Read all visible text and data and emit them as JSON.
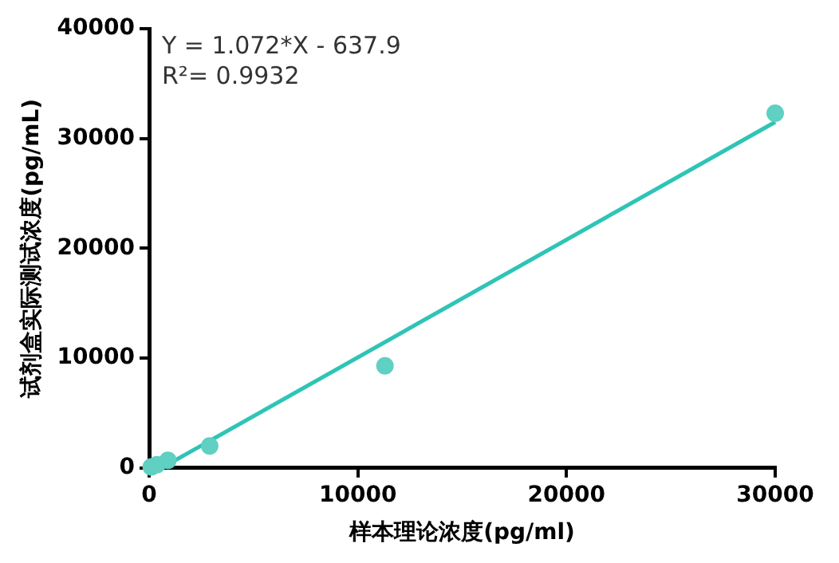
{
  "chart_data": {
    "type": "scatter",
    "xlabel": "样本理论浓度(pg/ml)",
    "ylabel": "试剂盒实际测试浓度(pg/mL)",
    "xlim": [
      0,
      30000
    ],
    "xticks": [
      0,
      10000,
      20000,
      30000
    ],
    "ylim": [
      0,
      40000
    ],
    "yticks": [
      0,
      10000,
      20000,
      30000,
      40000
    ],
    "grid": false,
    "legend": false,
    "annotations": [
      "Y = 1.072*X - 637.9",
      "R²= 0.9932"
    ],
    "series": [
      {
        "marker": "circle",
        "color": "#5fd0c2",
        "x": [
          100,
          370,
          900,
          2900,
          11300,
          30000
        ],
        "values": [
          100,
          300,
          700,
          2000,
          9300,
          32300
        ]
      },
      {
        "type": "line",
        "marker": "none",
        "color": "#2ec4b6",
        "x": [
          600,
          30000
        ],
        "values": [
          0,
          31500
        ]
      }
    ]
  }
}
